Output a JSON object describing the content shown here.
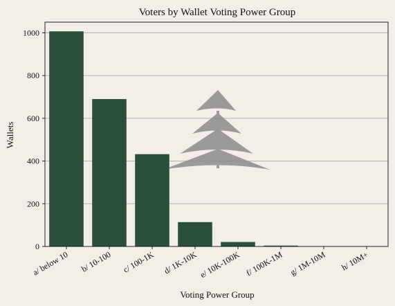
{
  "chart_data": {
    "type": "bar",
    "title": "Voters by Wallet Voting Power Group",
    "xlabel": "Voting Power Group",
    "ylabel": "Wallets",
    "categories": [
      "a/ below 10",
      "b/ 10-100",
      "c/ 100-1K",
      "d/ 1K-10K",
      "e/ 10K-100K",
      "f/ 100K-1M",
      "g/ 1M-10M",
      "h/ 10M+"
    ],
    "values": [
      1007,
      690,
      432,
      114,
      21,
      4,
      1,
      1
    ],
    "ylim": [
      0,
      1050
    ],
    "yticks": [
      0,
      200,
      400,
      600,
      800,
      1000
    ],
    "grid": "horizontal",
    "colors": {
      "bar": "#2a4f3b",
      "grid": "#b0b0b0",
      "background": "#f2efe9",
      "watermark": "#8c8c8c"
    },
    "watermark_icon": "pine-tree-icon"
  }
}
